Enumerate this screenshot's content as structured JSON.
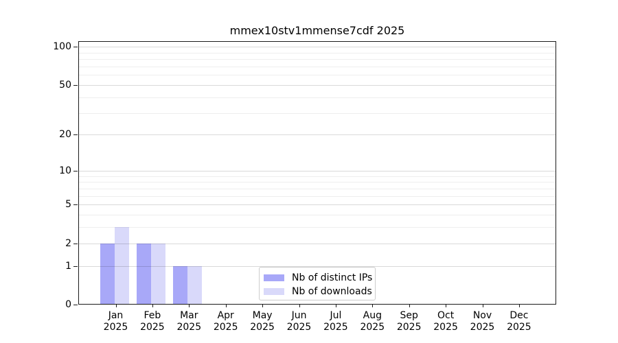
{
  "chart_data": {
    "type": "bar",
    "title": "mmex10stv1mmense7cdf 2025",
    "categories": [
      "Jan 2025",
      "Feb 2025",
      "Mar 2025",
      "Apr 2025",
      "May 2025",
      "Jun 2025",
      "Jul 2025",
      "Aug 2025",
      "Sep 2025",
      "Oct 2025",
      "Nov 2025",
      "Dec 2025"
    ],
    "series": [
      {
        "name": "Nb of distinct IPs",
        "color": "#a8a8f8",
        "values": [
          2,
          2,
          1,
          0,
          0,
          0,
          0,
          0,
          0,
          0,
          0,
          0
        ]
      },
      {
        "name": "Nb of downloads",
        "color": "#d9d9fa",
        "values": [
          3,
          2,
          1,
          0,
          0,
          0,
          0,
          0,
          0,
          0,
          0,
          0
        ]
      }
    ],
    "xlabel": "",
    "ylabel": "",
    "yscale": "log1p",
    "ylim": [
      0,
      111
    ],
    "yticks": [
      0,
      1,
      2,
      5,
      10,
      20,
      50,
      100
    ],
    "yticks_minor": [
      3,
      4,
      6,
      7,
      8,
      9,
      30,
      40,
      60,
      70,
      80,
      90
    ],
    "grid": true,
    "legend_position": "lower center",
    "colors": {
      "grid_major": "#d9d9d9",
      "grid_minor": "#eeeeee",
      "axis": "#1a1a1a",
      "text": "#000000",
      "legend_border": "#cccccc",
      "background": "#ffffff"
    }
  }
}
